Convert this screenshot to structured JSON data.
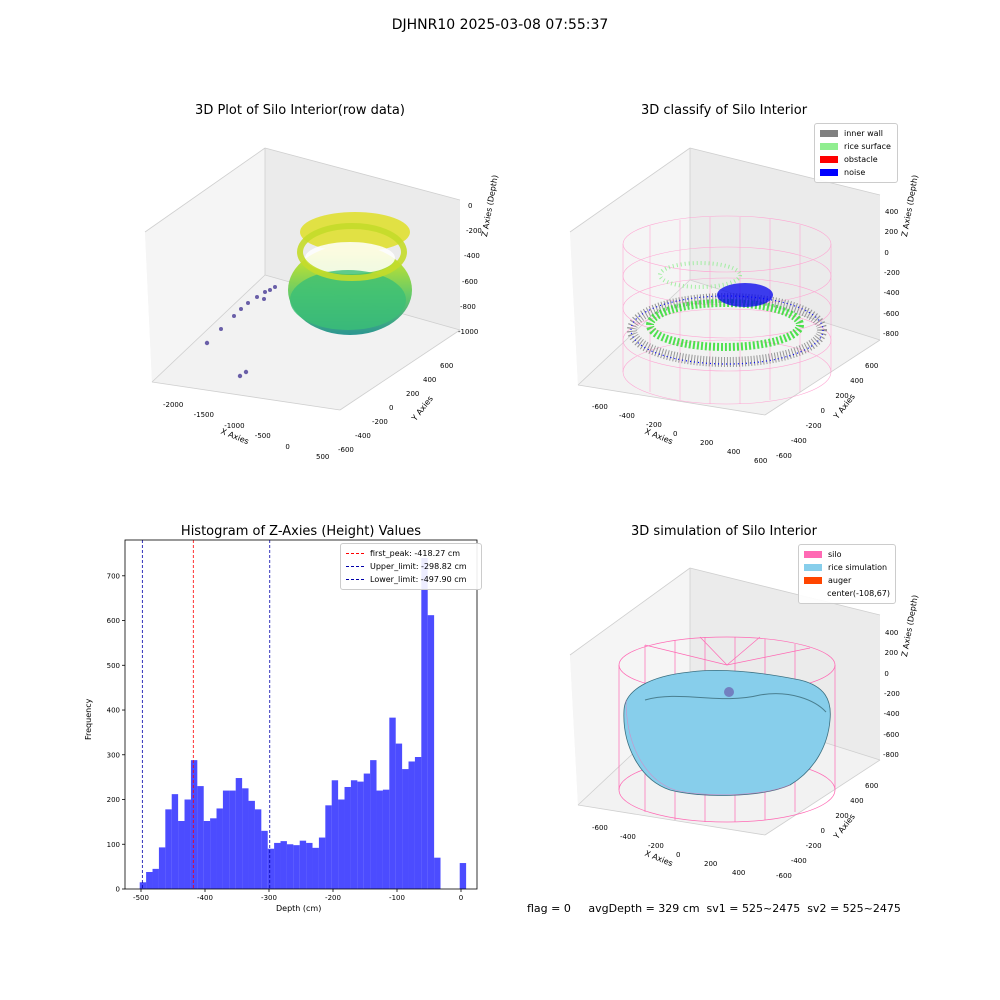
{
  "suptitle": "DJHNR10 2025-03-08 07:55:37",
  "panels": {
    "raw": {
      "title": "3D Plot of Silo Interior(row data)",
      "xlabel": "X Axies",
      "ylabel": "Y Axies",
      "zlabel": "Z Axies (Depth)",
      "xticks": [
        "-2000",
        "-1500",
        "-1000",
        "-500",
        "0",
        "500"
      ],
      "yticks": [
        "600",
        "400",
        "200",
        "0",
        "-200",
        "-400",
        "-600"
      ],
      "zticks": [
        "0",
        "-200",
        "-400",
        "-600",
        "-800",
        "-1000"
      ]
    },
    "classify": {
      "title": "3D classify of Silo Interior",
      "xlabel": "X Axies",
      "ylabel": "Y Axies",
      "zlabel": "Z Axies (Depth)",
      "xticks": [
        "-600",
        "-400",
        "-200",
        "0",
        "200",
        "400",
        "600"
      ],
      "yticks": [
        "600",
        "400",
        "200",
        "0",
        "-200",
        "-400",
        "-600"
      ],
      "zticks": [
        "400",
        "200",
        "0",
        "-200",
        "-400",
        "-600",
        "-800"
      ],
      "legend": [
        {
          "label": "inner wall",
          "color": "#808080"
        },
        {
          "label": "rice surface",
          "color": "#90ee90"
        },
        {
          "label": "obstacle",
          "color": "#ff0000"
        },
        {
          "label": "noise",
          "color": "#0000ff"
        }
      ]
    },
    "histogram": {
      "title": "Histogram of Z-Axies (Height) Values",
      "xlabel": "Depth (cm)",
      "ylabel": "Frequency",
      "legend": [
        {
          "label": "first_peak: -418.27 cm",
          "color": "#ff0000"
        },
        {
          "label": "Upper_limit: -298.82 cm",
          "color": "#0000aa"
        },
        {
          "label": "Lower_limit: -497.90 cm",
          "color": "#0000aa"
        }
      ]
    },
    "simulation": {
      "title": "3D simulation of Silo Interior",
      "xlabel": "X Axies",
      "ylabel": "Y Axies",
      "zlabel": "Z Axies (Depth)",
      "xticks": [
        "-600",
        "-400",
        "-200",
        "0",
        "200",
        "400"
      ],
      "yticks": [
        "600",
        "400",
        "200",
        "0",
        "-200",
        "-400",
        "-600"
      ],
      "zticks": [
        "400",
        "200",
        "0",
        "-200",
        "-400",
        "-600",
        "-800"
      ],
      "legend": [
        {
          "label": "silo",
          "color": "#ff69b4"
        },
        {
          "label": "rice simulation",
          "color": "#87ceeb"
        },
        {
          "label": "auger",
          "color": "#ff4500"
        },
        {
          "label": "center(-108,67)",
          "color": ""
        }
      ]
    }
  },
  "footer": {
    "flag": "flag = 0",
    "avg": "avgDepth = 329 cm  sv1 = 525~2475  sv2 = 525~2475"
  },
  "chart_data": {
    "type": "bar",
    "title": "Histogram of Z-Axies (Height) Values",
    "xlabel": "Depth (cm)",
    "ylabel": "Frequency",
    "xlim": [
      -525,
      25
    ],
    "ylim": [
      0,
      780
    ],
    "xticks": [
      -500,
      -400,
      -300,
      -200,
      -100,
      0
    ],
    "yticks": [
      0,
      100,
      200,
      300,
      400,
      500,
      600,
      700
    ],
    "bin_edges": [
      -502,
      -492,
      -482,
      -472,
      -462,
      -452,
      -442,
      -432,
      -422,
      -412,
      -402,
      -392,
      -382,
      -372,
      -362,
      -352,
      -342,
      -332,
      -322,
      -312,
      -302,
      -292,
      -282,
      -272,
      -262,
      -252,
      -242,
      -232,
      -222,
      -212,
      -202,
      -192,
      -182,
      -172,
      -162,
      -152,
      -142,
      -132,
      -122,
      -112,
      -102,
      -92,
      -82,
      -72,
      -62,
      -52,
      -42,
      -32,
      -22,
      -12,
      -2,
      8
    ],
    "values": [
      15,
      38,
      45,
      93,
      178,
      212,
      152,
      200,
      288,
      230,
      152,
      158,
      180,
      220,
      220,
      248,
      225,
      197,
      178,
      130,
      90,
      103,
      107,
      100,
      98,
      108,
      103,
      92,
      115,
      187,
      243,
      200,
      228,
      243,
      240,
      258,
      288,
      220,
      222,
      383,
      325,
      268,
      285,
      295,
      740,
      612,
      70,
      0,
      0,
      0,
      58
    ],
    "color": "#0000ff",
    "vlines": [
      {
        "label": "first_peak: -418.27 cm",
        "x": -418.27,
        "color": "#ff0000"
      },
      {
        "label": "Upper_limit: -298.82 cm",
        "x": -298.82,
        "color": "#0000aa"
      },
      {
        "label": "Lower_limit: -497.90 cm",
        "x": -497.9,
        "color": "#0000aa"
      }
    ]
  }
}
